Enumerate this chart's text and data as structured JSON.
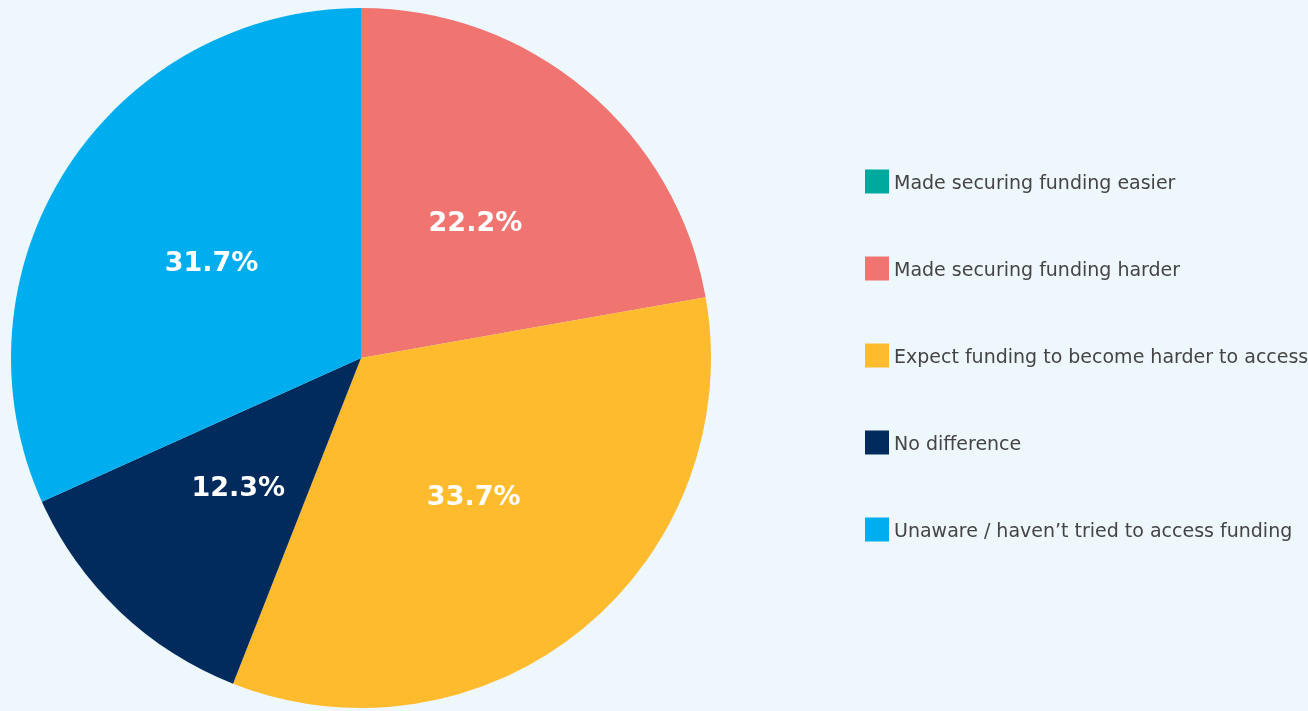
{
  "chart_data": {
    "type": "pie",
    "categories": [
      "Made securing funding easier",
      "Made securing funding harder",
      "Expect funding to become harder to access",
      "No difference",
      "Unaware / haven’t tried to access funding"
    ],
    "values": [
      0,
      22.2,
      33.7,
      12.3,
      31.7
    ],
    "value_labels": [
      null,
      "22.2%",
      "33.7%",
      "12.3%",
      "31.7%"
    ],
    "colors": [
      "#00a99d",
      "#f07470",
      "#fdbb2d",
      "#002b5c",
      "#00aeef"
    ],
    "legend": "right"
  }
}
